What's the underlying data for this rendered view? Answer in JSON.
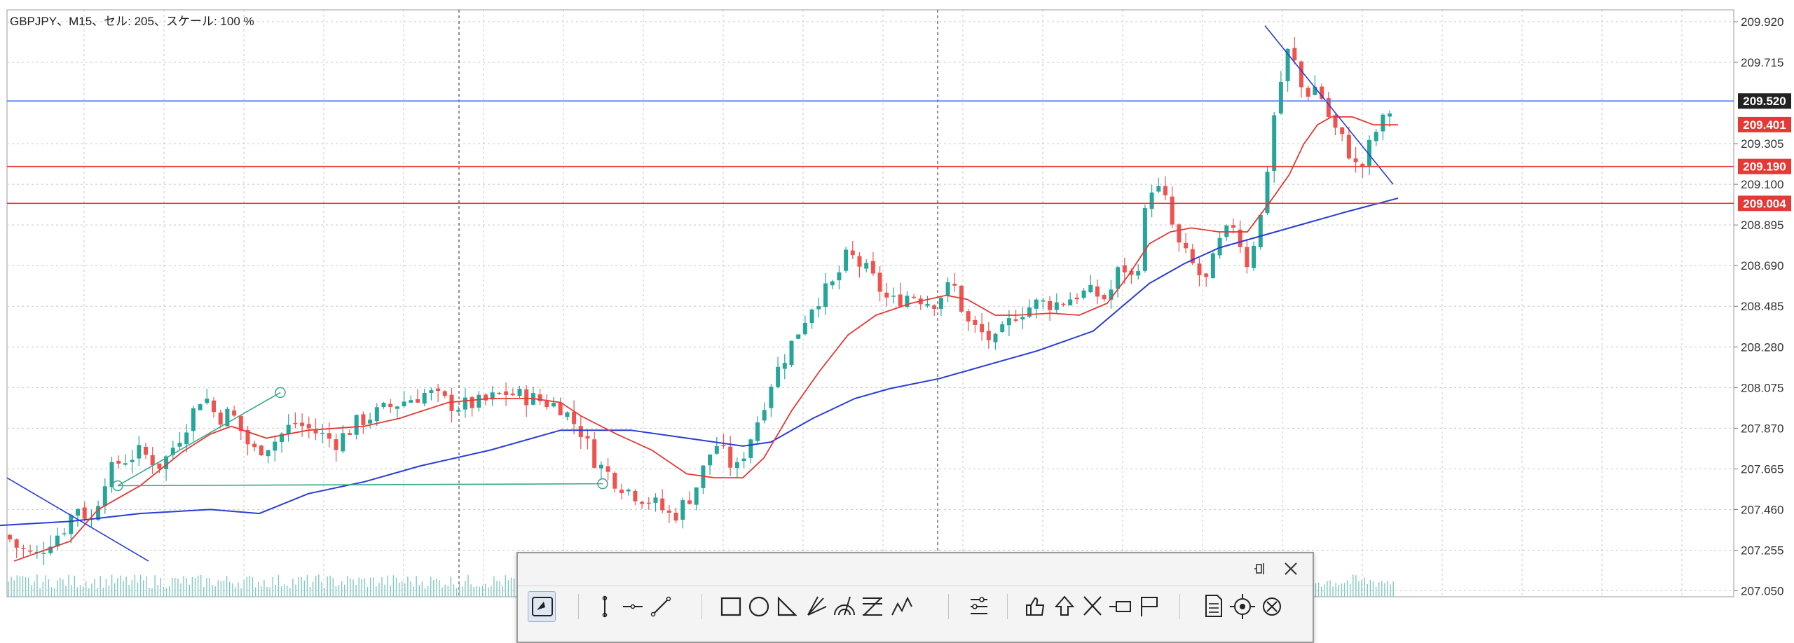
{
  "window": {
    "title": "GBPJPY、M15、セル: 205、スケール: 100 %"
  },
  "colors": {
    "grid": "#c8c8c8",
    "bull": "#26a69a",
    "bear": "#ef5350",
    "ma_fast": "#e53935",
    "ma_slow": "#2a3cd6",
    "trend_green": "#3aa88a",
    "level_blue": "#4e7bff",
    "level_red": "#e53935"
  },
  "price_axis": {
    "ticks": [
      "209.920",
      "209.715",
      "209.305",
      "209.100",
      "208.895",
      "208.690",
      "208.485",
      "208.280",
      "208.075",
      "207.870",
      "207.665",
      "207.460",
      "207.255",
      "207.050"
    ],
    "min": 207.02,
    "max": 209.98
  },
  "levels": [
    {
      "name": "current-price-line",
      "price": 209.52,
      "label": "209.520",
      "kind": "bid",
      "color": "#4e7bff"
    },
    {
      "name": "ma-value-label",
      "price": 209.401,
      "label": "209.401",
      "kind": "marker",
      "color": "#e53935"
    },
    {
      "name": "resistance-line",
      "price": 209.19,
      "label": "209.190",
      "kind": "line",
      "color": "#e53935"
    },
    {
      "name": "support-line",
      "price": 209.004,
      "label": "209.004",
      "kind": "line",
      "color": "#e53935"
    }
  ],
  "chart_data": {
    "type": "candlestick",
    "symbol": "GBPJPY",
    "timeframe": "M15",
    "close_anchors": [
      [
        0,
        207.38
      ],
      [
        20,
        207.28
      ],
      [
        50,
        207.22
      ],
      [
        70,
        207.3
      ],
      [
        90,
        207.36
      ],
      [
        110,
        207.48
      ],
      [
        130,
        207.4
      ],
      [
        150,
        207.62
      ],
      [
        170,
        207.7
      ],
      [
        200,
        207.75
      ],
      [
        230,
        207.68
      ],
      [
        260,
        207.85
      ],
      [
        290,
        208.05
      ],
      [
        310,
        207.92
      ],
      [
        330,
        207.95
      ],
      [
        360,
        207.75
      ],
      [
        390,
        207.8
      ],
      [
        420,
        207.9
      ],
      [
        450,
        207.85
      ],
      [
        480,
        207.8
      ],
      [
        510,
        207.9
      ],
      [
        540,
        207.95
      ],
      [
        570,
        208.0
      ],
      [
        610,
        208.05
      ],
      [
        650,
        207.98
      ],
      [
        690,
        208.0
      ],
      [
        720,
        208.05
      ],
      [
        760,
        208.02
      ],
      [
        800,
        207.98
      ],
      [
        830,
        207.85
      ],
      [
        850,
        207.7
      ],
      [
        880,
        207.6
      ],
      [
        900,
        207.55
      ],
      [
        930,
        207.5
      ],
      [
        960,
        207.42
      ],
      [
        990,
        207.55
      ],
      [
        1020,
        207.8
      ],
      [
        1050,
        207.65
      ],
      [
        1080,
        207.9
      ],
      [
        1100,
        208.1
      ],
      [
        1130,
        208.3
      ],
      [
        1160,
        208.5
      ],
      [
        1190,
        208.6
      ],
      [
        1210,
        208.75
      ],
      [
        1240,
        208.65
      ],
      [
        1270,
        208.5
      ],
      [
        1300,
        208.55
      ],
      [
        1330,
        208.5
      ],
      [
        1360,
        208.6
      ],
      [
        1380,
        208.4
      ],
      [
        1400,
        208.35
      ],
      [
        1420,
        208.3
      ],
      [
        1450,
        208.45
      ],
      [
        1480,
        208.5
      ],
      [
        1510,
        208.5
      ],
      [
        1540,
        208.55
      ],
      [
        1560,
        208.55
      ],
      [
        1580,
        208.52
      ],
      [
        1600,
        208.7
      ],
      [
        1620,
        208.6
      ],
      [
        1640,
        209.1
      ],
      [
        1660,
        209.05
      ],
      [
        1680,
        208.8
      ],
      [
        1700,
        208.7
      ],
      [
        1720,
        208.6
      ],
      [
        1740,
        208.8
      ],
      [
        1760,
        208.9
      ],
      [
        1780,
        208.7
      ],
      [
        1800,
        208.95
      ],
      [
        1820,
        209.5
      ],
      [
        1840,
        209.8
      ],
      [
        1860,
        209.55
      ],
      [
        1880,
        209.6
      ],
      [
        1900,
        209.4
      ],
      [
        1920,
        209.3
      ],
      [
        1940,
        209.15
      ],
      [
        1960,
        209.35
      ],
      [
        1980,
        209.45
      ],
      [
        1995,
        209.55
      ]
    ],
    "ma_fast": [
      [
        20,
        207.2
      ],
      [
        100,
        207.3
      ],
      [
        140,
        207.46
      ],
      [
        200,
        207.58
      ],
      [
        260,
        207.75
      ],
      [
        300,
        207.84
      ],
      [
        330,
        207.88
      ],
      [
        380,
        207.82
      ],
      [
        440,
        207.86
      ],
      [
        520,
        207.88
      ],
      [
        570,
        207.92
      ],
      [
        640,
        208.0
      ],
      [
        700,
        208.02
      ],
      [
        760,
        208.02
      ],
      [
        800,
        208.0
      ],
      [
        830,
        207.93
      ],
      [
        880,
        207.84
      ],
      [
        930,
        207.76
      ],
      [
        980,
        207.64
      ],
      [
        1020,
        207.62
      ],
      [
        1060,
        207.62
      ],
      [
        1090,
        207.72
      ],
      [
        1130,
        207.96
      ],
      [
        1170,
        208.16
      ],
      [
        1210,
        208.34
      ],
      [
        1250,
        208.44
      ],
      [
        1300,
        208.5
      ],
      [
        1350,
        208.54
      ],
      [
        1380,
        208.52
      ],
      [
        1420,
        208.44
      ],
      [
        1450,
        208.44
      ],
      [
        1500,
        208.45
      ],
      [
        1540,
        208.44
      ],
      [
        1580,
        208.5
      ],
      [
        1610,
        208.64
      ],
      [
        1640,
        208.8
      ],
      [
        1670,
        208.86
      ],
      [
        1700,
        208.88
      ],
      [
        1740,
        208.86
      ],
      [
        1780,
        208.86
      ],
      [
        1810,
        209.0
      ],
      [
        1840,
        209.15
      ],
      [
        1860,
        209.3
      ],
      [
        1880,
        209.4
      ],
      [
        1900,
        209.44
      ],
      [
        1930,
        209.44
      ],
      [
        1960,
        209.4
      ],
      [
        1995,
        209.4
      ]
    ],
    "ma_slow": [
      [
        0,
        207.38
      ],
      [
        100,
        207.4
      ],
      [
        200,
        207.44
      ],
      [
        300,
        207.46
      ],
      [
        370,
        207.44
      ],
      [
        440,
        207.54
      ],
      [
        520,
        207.6
      ],
      [
        600,
        207.68
      ],
      [
        700,
        207.76
      ],
      [
        800,
        207.86
      ],
      [
        900,
        207.86
      ],
      [
        980,
        207.82
      ],
      [
        1060,
        207.78
      ],
      [
        1100,
        207.8
      ],
      [
        1160,
        207.92
      ],
      [
        1220,
        208.02
      ],
      [
        1270,
        208.07
      ],
      [
        1340,
        208.12
      ],
      [
        1400,
        208.18
      ],
      [
        1480,
        208.26
      ],
      [
        1560,
        208.36
      ],
      [
        1600,
        208.48
      ],
      [
        1640,
        208.6
      ],
      [
        1690,
        208.7
      ],
      [
        1740,
        208.78
      ],
      [
        1800,
        208.84
      ],
      [
        1860,
        208.9
      ],
      [
        1920,
        208.96
      ],
      [
        1995,
        209.03
      ]
    ],
    "trendlines": [
      {
        "name": "trendline-green-up",
        "x1": 168,
        "p1": 207.58,
        "x2": 400,
        "p2": 208.05,
        "color": "#3aa88a"
      },
      {
        "name": "trendline-green-flat",
        "x1": 168,
        "p1": 207.58,
        "x2": 860,
        "p2": 207.59,
        "color": "#3aa88a"
      },
      {
        "name": "trendline-blue-left",
        "x1": 10,
        "p1": 207.62,
        "x2": 212,
        "p2": 207.2,
        "color": "#2a3cd6"
      },
      {
        "name": "trendline-blue-right",
        "x1": 1805,
        "p1": 209.9,
        "x2": 1988,
        "p2": 209.1,
        "color": "#2a3cd6"
      }
    ],
    "vlines_x": [
      655,
      1338
    ]
  },
  "toolbar": {
    "tools": [
      {
        "name": "cursor-mode-icon",
        "active": true
      },
      {
        "name": "vertical-line-icon"
      },
      {
        "name": "horizontal-line-icon"
      },
      {
        "name": "trend-line-icon"
      },
      {
        "name": "rectangle-icon"
      },
      {
        "name": "ellipse-icon"
      },
      {
        "name": "triangle-icon"
      },
      {
        "name": "pitchfork-icon"
      },
      {
        "name": "fibonacci-arcs-icon"
      },
      {
        "name": "fibonacci-fan-icon"
      },
      {
        "name": "elliott-wave-icon"
      },
      {
        "name": "indicator-settings-icon"
      },
      {
        "name": "thumb-up-icon"
      },
      {
        "name": "arrow-up-icon"
      },
      {
        "name": "cross-icon"
      },
      {
        "name": "price-label-icon"
      },
      {
        "name": "flag-icon"
      },
      {
        "name": "template-icon"
      },
      {
        "name": "target-icon"
      },
      {
        "name": "target-cross-icon"
      }
    ]
  }
}
